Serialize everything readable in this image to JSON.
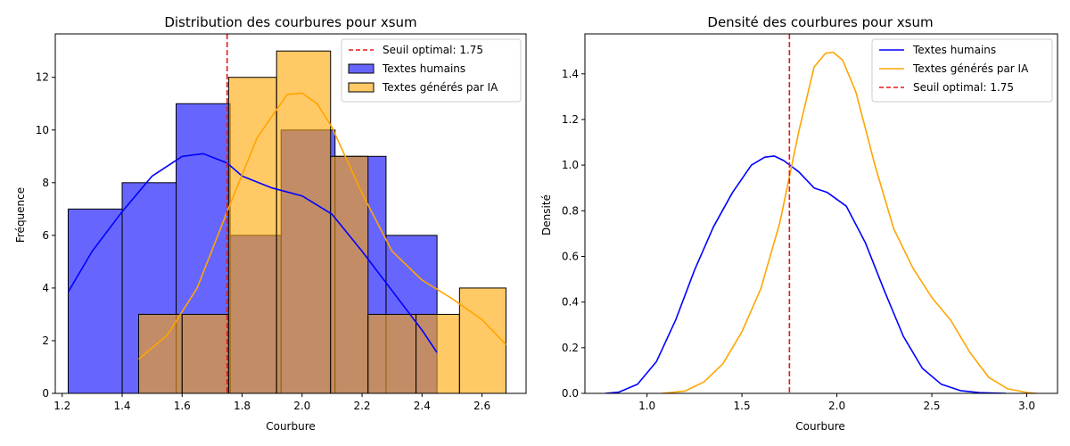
{
  "chart_data": [
    {
      "type": "histogram",
      "title": "Distribution des courbures pour xsum",
      "xlabel": "Courbure",
      "ylabel": "Fréquence",
      "xlim": [
        1.177,
        2.747
      ],
      "ylim": [
        0,
        13.65
      ],
      "xticks": [
        1.2,
        1.4,
        1.6,
        1.8,
        2.0,
        2.2,
        2.4,
        2.6
      ],
      "xtick_labels": [
        "1.2",
        "1.4",
        "1.6",
        "1.8",
        "2.0",
        "2.2",
        "2.4",
        "2.6"
      ],
      "yticks": [
        0,
        2,
        4,
        6,
        8,
        10,
        12
      ],
      "ytick_labels": [
        "0",
        "2",
        "4",
        "6",
        "8",
        "10",
        "12"
      ],
      "legend_position": "top-right",
      "threshold": {
        "name": "Seuil optimal: 1.75",
        "x": 1.75,
        "color": "#e41a1c"
      },
      "series": [
        {
          "name": "Textes humains",
          "color": "#0000ff",
          "bins": [
            {
              "x0": 1.22,
              "x1": 1.4,
              "count": 7
            },
            {
              "x0": 1.4,
              "x1": 1.58,
              "count": 8
            },
            {
              "x0": 1.58,
              "x1": 1.76,
              "count": 11
            },
            {
              "x0": 1.76,
              "x1": 1.93,
              "count": 6
            },
            {
              "x0": 1.93,
              "x1": 2.11,
              "count": 10
            },
            {
              "x0": 2.11,
              "x1": 2.28,
              "count": 9
            },
            {
              "x0": 2.28,
              "x1": 2.45,
              "count": 6
            },
            {
              "x0": 2.45,
              "x1": 2.45,
              "count": 0
            }
          ],
          "kde": {
            "x": [
              1.22,
              1.3,
              1.4,
              1.5,
              1.6,
              1.67,
              1.75,
              1.8,
              1.9,
              2.0,
              2.1,
              2.2,
              2.3,
              2.4,
              2.45
            ],
            "y": [
              3.85,
              5.4,
              6.9,
              8.25,
              9.0,
              9.1,
              8.75,
              8.25,
              7.8,
              7.5,
              6.8,
              5.4,
              3.9,
              2.4,
              1.55
            ]
          }
        },
        {
          "name": "Textes générés par IA",
          "color": "#ffa500",
          "bins": [
            {
              "x0": 1.455,
              "x1": 1.6,
              "count": 3
            },
            {
              "x0": 1.6,
              "x1": 1.755,
              "count": 3
            },
            {
              "x0": 1.755,
              "x1": 1.915,
              "count": 12
            },
            {
              "x0": 1.915,
              "x1": 2.095,
              "count": 13
            },
            {
              "x0": 2.095,
              "x1": 2.22,
              "count": 9
            },
            {
              "x0": 2.22,
              "x1": 2.38,
              "count": 3
            },
            {
              "x0": 2.38,
              "x1": 2.525,
              "count": 3
            },
            {
              "x0": 2.525,
              "x1": 2.68,
              "count": 4
            }
          ],
          "kde": {
            "x": [
              1.455,
              1.55,
              1.65,
              1.75,
              1.85,
              1.95,
              2.0,
              2.05,
              2.1,
              2.2,
              2.3,
              2.4,
              2.5,
              2.6,
              2.68
            ],
            "y": [
              1.3,
              2.2,
              4.0,
              6.9,
              9.7,
              11.35,
              11.4,
              11.0,
              10.1,
              7.6,
              5.4,
              4.3,
              3.6,
              2.8,
              1.85
            ]
          }
        }
      ]
    },
    {
      "type": "line",
      "title": "Densité des courbures pour xsum",
      "xlabel": "Courbure",
      "ylabel": "Densité",
      "xlim": [
        0.673,
        3.162
      ],
      "ylim": [
        0,
        1.575
      ],
      "xticks": [
        1.0,
        1.5,
        2.0,
        2.5,
        3.0
      ],
      "xtick_labels": [
        "1.0",
        "1.5",
        "2.0",
        "2.5",
        "3.0"
      ],
      "yticks": [
        0,
        0.2,
        0.4,
        0.6,
        0.8,
        1.0,
        1.2,
        1.4
      ],
      "ytick_labels": [
        "0.0",
        "0.2",
        "0.4",
        "0.6",
        "0.8",
        "1.0",
        "1.2",
        "1.4"
      ],
      "legend_position": "top-right",
      "threshold": {
        "name": "Seuil optimal: 1.75",
        "x": 1.75,
        "color": "#e41a1c"
      },
      "series": [
        {
          "name": "Textes humains",
          "color": "#0000ff",
          "x": [
            0.78,
            0.85,
            0.95,
            1.05,
            1.15,
            1.25,
            1.35,
            1.45,
            1.55,
            1.62,
            1.67,
            1.72,
            1.8,
            1.88,
            1.95,
            2.05,
            2.15,
            2.25,
            2.35,
            2.45,
            2.55,
            2.65,
            2.75,
            2.89
          ],
          "y": [
            0.0,
            0.005,
            0.04,
            0.14,
            0.32,
            0.54,
            0.73,
            0.88,
            1.0,
            1.035,
            1.04,
            1.02,
            0.97,
            0.9,
            0.88,
            0.82,
            0.66,
            0.45,
            0.25,
            0.11,
            0.04,
            0.012,
            0.003,
            0.0
          ]
        },
        {
          "name": "Textes générés par IA",
          "color": "#ffa500",
          "x": [
            1.08,
            1.2,
            1.3,
            1.4,
            1.5,
            1.6,
            1.7,
            1.8,
            1.88,
            1.94,
            1.98,
            2.03,
            2.1,
            2.2,
            2.3,
            2.4,
            2.5,
            2.6,
            2.7,
            2.8,
            2.9,
            3.0,
            3.05
          ],
          "y": [
            0.0,
            0.01,
            0.05,
            0.13,
            0.27,
            0.46,
            0.75,
            1.15,
            1.43,
            1.49,
            1.495,
            1.46,
            1.32,
            1.0,
            0.72,
            0.55,
            0.42,
            0.32,
            0.18,
            0.07,
            0.02,
            0.004,
            0.0
          ]
        }
      ]
    }
  ]
}
